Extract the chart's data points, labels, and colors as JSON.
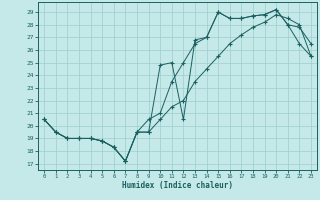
{
  "xlabel": "Humidex (Indice chaleur)",
  "background_color": "#c5e8e8",
  "grid_color": "#9ecece",
  "line_color": "#1a6060",
  "xlim": [
    -0.5,
    23.5
  ],
  "ylim": [
    16.5,
    29.8
  ],
  "yticks": [
    17,
    18,
    19,
    20,
    21,
    22,
    23,
    24,
    25,
    26,
    27,
    28,
    29
  ],
  "xticks": [
    0,
    1,
    2,
    3,
    4,
    5,
    6,
    7,
    8,
    9,
    10,
    11,
    12,
    13,
    14,
    15,
    16,
    17,
    18,
    19,
    20,
    21,
    22,
    23
  ],
  "hours": [
    0,
    1,
    2,
    3,
    4,
    5,
    6,
    7,
    8,
    9,
    10,
    11,
    12,
    13,
    14,
    15,
    16,
    17,
    18,
    19,
    20,
    21,
    22,
    23
  ],
  "line1": [
    20.5,
    19.5,
    19.0,
    19.0,
    19.0,
    18.8,
    18.3,
    17.2,
    19.5,
    20.5,
    21.0,
    23.5,
    25.0,
    26.5,
    27.0,
    29.0,
    28.5,
    28.5,
    28.7,
    28.8,
    29.2,
    28.0,
    26.5,
    25.5
  ],
  "line2": [
    20.5,
    19.5,
    19.0,
    19.0,
    19.0,
    18.8,
    18.3,
    17.2,
    19.5,
    19.5,
    24.8,
    25.0,
    20.5,
    26.8,
    27.0,
    29.0,
    28.5,
    28.5,
    28.7,
    28.8,
    29.2,
    28.0,
    27.8,
    26.5
  ],
  "line3": [
    20.5,
    19.5,
    19.0,
    19.0,
    19.0,
    18.8,
    18.3,
    17.2,
    19.5,
    19.5,
    20.5,
    21.5,
    22.0,
    23.5,
    24.5,
    25.5,
    26.5,
    27.2,
    27.8,
    28.2,
    28.8,
    28.5,
    28.0,
    25.5
  ]
}
